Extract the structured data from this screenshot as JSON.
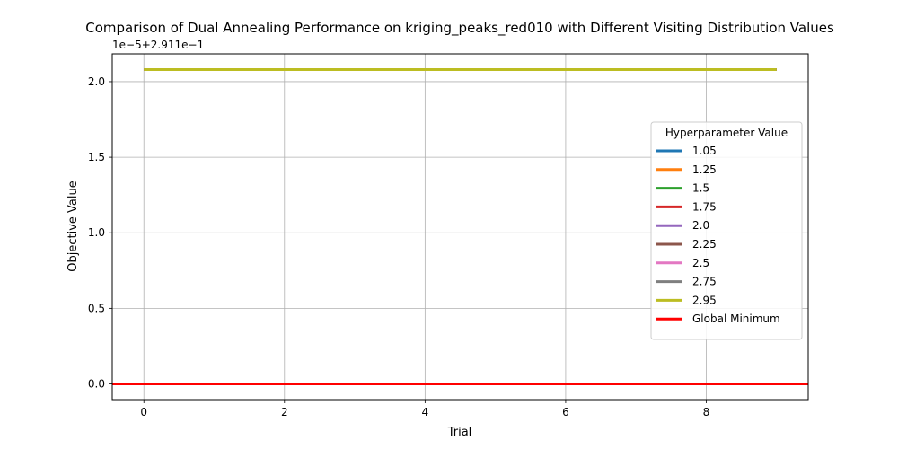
{
  "chart_data": {
    "type": "line",
    "title": "Comparison of Dual Annealing Performance on kriging_peaks_red010 with Different Visiting Distribution Values",
    "xlabel": "Trial",
    "ylabel": "Objective Value",
    "offset_text": "1e−5+2.911e−1",
    "xlim": [
      -0.45,
      9.45
    ],
    "ylim": [
      -0.104,
      2.184
    ],
    "xticks": [
      0,
      2,
      4,
      6,
      8
    ],
    "xtick_labels": [
      "0",
      "2",
      "4",
      "6",
      "8"
    ],
    "yticks": [
      0.0,
      0.5,
      1.0,
      1.5,
      2.0
    ],
    "ytick_labels": [
      "0.0",
      "0.5",
      "1.0",
      "1.5",
      "2.0"
    ],
    "grid": true,
    "legend_title": "Hyperparameter Value",
    "legend_position": "center-right",
    "x": [
      0,
      1,
      2,
      3,
      4,
      5,
      6,
      7,
      8,
      9
    ],
    "series": [
      {
        "name": "1.05",
        "color": "#1f77b4",
        "values": [
          2.08,
          2.08,
          2.08,
          2.08,
          2.08,
          2.08,
          2.08,
          2.08,
          2.08,
          2.08
        ]
      },
      {
        "name": "1.25",
        "color": "#ff7f0e",
        "values": [
          2.08,
          2.08,
          2.08,
          2.08,
          2.08,
          2.08,
          2.08,
          2.08,
          2.08,
          2.08
        ]
      },
      {
        "name": "1.5",
        "color": "#2ca02c",
        "values": [
          2.08,
          2.08,
          2.08,
          2.08,
          2.08,
          2.08,
          2.08,
          2.08,
          2.08,
          2.08
        ]
      },
      {
        "name": "1.75",
        "color": "#d62728",
        "values": [
          2.08,
          2.08,
          2.08,
          2.08,
          2.08,
          2.08,
          2.08,
          2.08,
          2.08,
          2.08
        ]
      },
      {
        "name": "2.0",
        "color": "#9467bd",
        "values": [
          2.08,
          2.08,
          2.08,
          2.08,
          2.08,
          2.08,
          2.08,
          2.08,
          2.08,
          2.08
        ]
      },
      {
        "name": "2.25",
        "color": "#8c564b",
        "values": [
          2.08,
          2.08,
          2.08,
          2.08,
          2.08,
          2.08,
          2.08,
          2.08,
          2.08,
          2.08
        ]
      },
      {
        "name": "2.5",
        "color": "#e377c2",
        "values": [
          2.08,
          2.08,
          2.08,
          2.08,
          2.08,
          2.08,
          2.08,
          2.08,
          2.08,
          2.08
        ]
      },
      {
        "name": "2.75",
        "color": "#7f7f7f",
        "values": [
          2.08,
          2.08,
          2.08,
          2.08,
          2.08,
          2.08,
          2.08,
          2.08,
          2.08,
          2.08
        ]
      },
      {
        "name": "2.95",
        "color": "#bcbd22",
        "values": [
          2.08,
          2.08,
          2.08,
          2.08,
          2.08,
          2.08,
          2.08,
          2.08,
          2.08,
          2.08
        ]
      }
    ],
    "reference_line": {
      "name": "Global Minimum",
      "color": "#ff0000",
      "y": 0.0
    }
  }
}
